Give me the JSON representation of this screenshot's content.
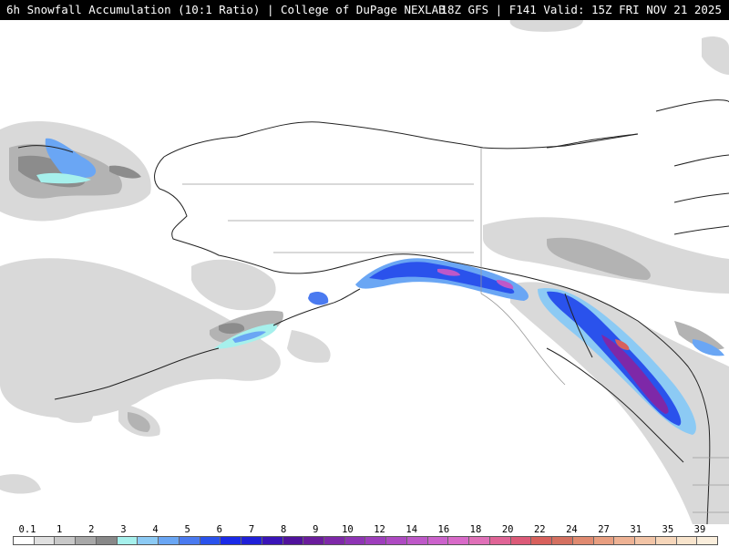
{
  "header": {
    "left": "6h Snowfall Accumulation (10:1 Ratio) | College of DuPage NEXLAB",
    "right": "18Z GFS | F141 Valid: 15Z FRI NOV 21 2025"
  },
  "legend": {
    "labels": [
      "0.1",
      "1",
      "2",
      "3",
      "4",
      "5",
      "6",
      "7",
      "8",
      "9",
      "10",
      "12",
      "14",
      "16",
      "18",
      "20",
      "22",
      "24",
      "27",
      "31",
      "35",
      "39"
    ],
    "colors": [
      "#ffffff",
      "#e0e0e0",
      "#c8c8c8",
      "#a8a8a8",
      "#888888",
      "#a6f0ec",
      "#8ccaf4",
      "#6aa6f4",
      "#4a7af0",
      "#2a52ec",
      "#1a2ae8",
      "#2020d8",
      "#3a14b8",
      "#50129c",
      "#6a1c9c",
      "#7e28a8",
      "#8e34b4",
      "#9e3ebc",
      "#ae4ac2",
      "#be58c8",
      "#cc62cc",
      "#d86ac8",
      "#e070b8",
      "#e06496",
      "#dc5a78",
      "#d8605c",
      "#d47060",
      "#e08a70",
      "#e89e80",
      "#eeb294",
      "#f2c4a6",
      "#f6d6ba",
      "#f8e4cc",
      "#faeedc"
    ]
  }
}
